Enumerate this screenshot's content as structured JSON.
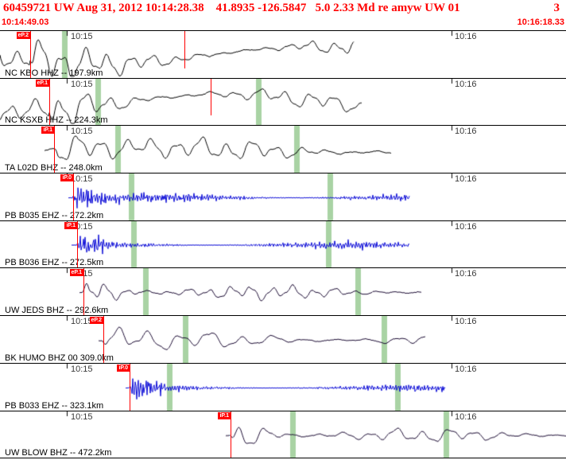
{
  "header": {
    "title": "60459721 UW Aug 31, 2012 10:14:28.38    41.8935 -126.5847   5.0 2.33 Md re amyw UW 01",
    "count": "3"
  },
  "timebar": {
    "start": "10:14:49.03",
    "end": "10:16:18.33"
  },
  "colors": {
    "accent_red": "#ff0000",
    "band_green": "#a9d3a4",
    "trace_blue": "#0b0bd6",
    "trace_black": "#000000",
    "trace_dark": "#1b0b33"
  },
  "panels": [
    {
      "label": "NC KBO HHZ -- 197.9km",
      "t1": "10:15",
      "t2": "10:16",
      "pick_label": "eP.2",
      "color": "#000000",
      "noisy": false,
      "f": 0.22,
      "amp": 15,
      "lfA": 11,
      "pre": 0.95,
      "burst": 1.1,
      "bw": 60,
      "sus": 0.75,
      "start": 0,
      "end": 445,
      "pick": 38,
      "aux": 232,
      "bands": [
        78
      ]
    },
    {
      "label": "NC KSXB HHZ -- 224.3km",
      "t1": "10:15",
      "t2": "10:16",
      "pick_label": "eP.1",
      "color": "#000000",
      "noisy": false,
      "f": 0.2,
      "amp": 14,
      "lfA": 11,
      "pre": 0.95,
      "burst": 1.1,
      "bw": 60,
      "sus": 0.75,
      "start": 0,
      "end": 455,
      "pick": 62,
      "aux": 265,
      "bands": [
        120,
        322
      ]
    },
    {
      "label": "TA L02D BHZ -- 248.0km",
      "t1": "10:15",
      "t2": "10:16",
      "pick_label": "iP.1",
      "color": "#000000",
      "noisy": false,
      "f": 0.2,
      "amp": 16,
      "lfA": 3,
      "pre": 0.12,
      "burst": 1.0,
      "bw": 80,
      "sus": 0.8,
      "start": 56,
      "end": 492,
      "pick": 68,
      "aux": null,
      "bands": [
        145,
        370
      ]
    },
    {
      "label": "PB B035 EHZ -- 272.2km",
      "t1": "10:15",
      "t2": "10:16",
      "pick_label": "iP.0",
      "color": "#0b0bd6",
      "noisy": true,
      "f": 1.9,
      "amp": 15,
      "lfA": 0,
      "pre": 0.03,
      "burst": 1.0,
      "bw": 25,
      "sus": 0.42,
      "start": 86,
      "end": 515,
      "pick": 92,
      "aux": null,
      "bands": [
        162,
        412
      ]
    },
    {
      "label": "PB B036 EHZ -- 272.5km",
      "t1": "10:15",
      "t2": "10:16",
      "pick_label": "iP.1",
      "color": "#0b0bd6",
      "noisy": true,
      "f": 1.9,
      "amp": 14,
      "lfA": 0,
      "pre": 0.03,
      "burst": 1.0,
      "bw": 22,
      "sus": 0.4,
      "start": 90,
      "end": 515,
      "pick": 97,
      "aux": null,
      "bands": [
        165,
        410
      ]
    },
    {
      "label": "UW JEDS BHZ -- 292.6km",
      "t1": "10:15",
      "t2": "10:16",
      "pick_label": "eP.1",
      "color": "#1b0b33",
      "noisy": false,
      "f": 0.24,
      "amp": 13,
      "lfA": 0,
      "pre": 0.05,
      "burst": 1.1,
      "bw": 35,
      "sus": 0.7,
      "start": 100,
      "end": 530,
      "pick": 105,
      "aux": null,
      "bands": [
        180,
        447
      ]
    },
    {
      "label": "BK HUMO BHZ 00 309.0km",
      "t1": "10:15",
      "t2": "10:16",
      "pick_label": "eP.2",
      "color": "#1b0b33",
      "noisy": false,
      "f": 0.16,
      "amp": 14,
      "lfA": 0,
      "pre": 0.05,
      "burst": 1.0,
      "bw": 40,
      "sus": 0.75,
      "start": 124,
      "end": 535,
      "pick": 130,
      "aux": null,
      "bands": [
        230,
        480
      ]
    },
    {
      "label": "PB B033 EHZ -- 323.1km",
      "t1": "10:15",
      "t2": "10:16",
      "pick_label": "iP.0",
      "color": "#0b0bd6",
      "noisy": true,
      "f": 1.9,
      "amp": 13,
      "lfA": 0,
      "pre": 0.03,
      "burst": 1.1,
      "bw": 25,
      "sus": 0.38,
      "start": 158,
      "end": 560,
      "pick": 163,
      "aux": null,
      "bands": [
        210,
        497
      ]
    },
    {
      "label": "UW BLOW BHZ -- 472.2km",
      "t1": "10:15",
      "t2": "10:16",
      "pick_label": "iP.1",
      "color": "#1b0b33",
      "noisy": false,
      "f": 0.19,
      "amp": 13,
      "lfA": 0,
      "pre": 0.05,
      "burst": 1.2,
      "bw": 35,
      "sus": 0.7,
      "start": 284,
      "end": 712,
      "pick": 290,
      "aux": null,
      "bands": [
        365,
        558
      ]
    }
  ]
}
